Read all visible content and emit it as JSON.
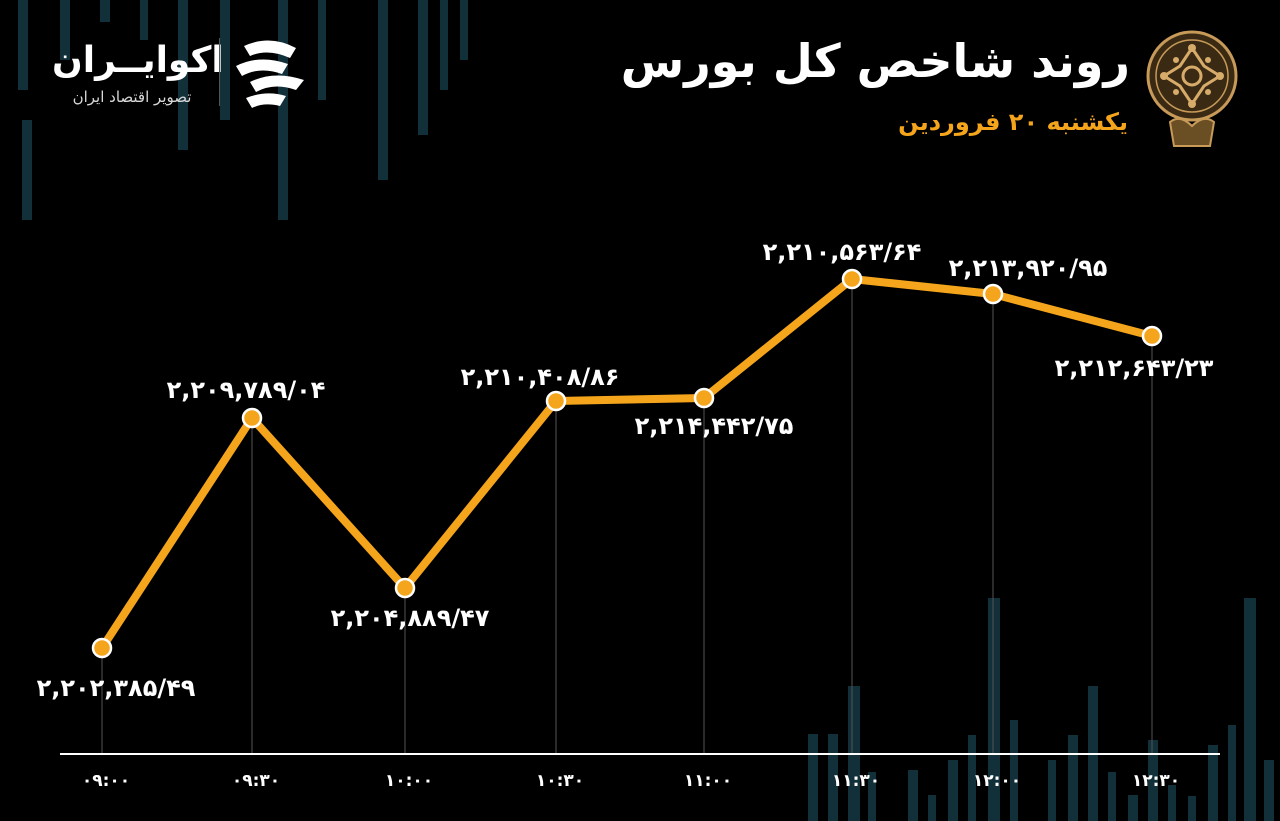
{
  "header": {
    "title": "روند شاخص کل بورس",
    "subtitle": "یکشنبه ۲۰ فروردین"
  },
  "brand": {
    "name": "اکوایــران",
    "tagline": "تصویر اقتصاد ایران",
    "logo_icon": "ekoiran-stripes-icon",
    "emblem_icon": "tehran-stock-exchange-emblem-icon"
  },
  "colors": {
    "background": "#000000",
    "line": "#F5A51B",
    "point_fill": "#F5A51B",
    "point_stroke": "#ffffff",
    "text": "#ffffff",
    "subtitle": "#F5A51B",
    "decor_bars": "#12303a",
    "drop_lines": "#555555",
    "axis": "#ffffff"
  },
  "chart_data": {
    "type": "line",
    "title": "روند شاخص کل بورس",
    "xlabel": "",
    "ylabel": "",
    "grid": false,
    "legend": "none",
    "categories": [
      "۰۹:۰۰",
      "۰۹:۳۰",
      "۱۰:۰۰",
      "۱۰:۳۰",
      "۱۱:۰۰",
      "۱۱:۳۰",
      "۱۲:۰۰",
      "۱۲:۳۰"
    ],
    "values": [
      2202385.49,
      2209789.04,
      2204889.47,
      2210408.86,
      2214442.75,
      2210563.64,
      2213920.95,
      2212643.23
    ],
    "value_labels": [
      "۲,۲۰۲,۳۸۵/۴۹",
      "۲,۲۰۹,۷۸۹/۰۴",
      "۲,۲۰۴,۸۸۹/۴۷",
      "۲,۲۱۰,۴۰۸/۸۶",
      "۲,۲۱۴,۴۴۲/۷۵",
      "۲,۲۱۰,۵۶۳/۶۴",
      "۲,۲۱۳,۹۲۰/۹۵",
      "۲,۲۱۲,۶۴۳/۲۳"
    ]
  }
}
